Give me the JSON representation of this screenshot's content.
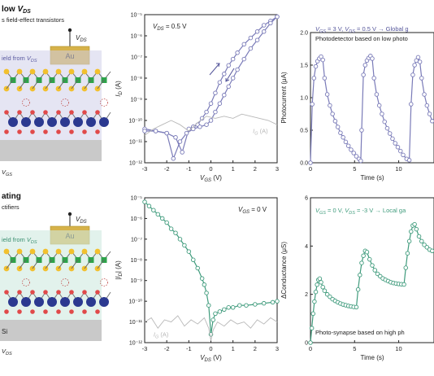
{
  "schematic_top": {
    "title_prefix": "low ",
    "title_var": "V",
    "title_sub": "DS",
    "subtitle": "s field-effect transistors",
    "electrode": "Au",
    "vds_var": "V",
    "vds_sub": "DS",
    "field_prefix": "ield from ",
    "field_var": "V",
    "field_sub": "DS",
    "gs_var": "V",
    "gs_sub": "GS"
  },
  "schematic_bottom": {
    "title": "ating",
    "subtitle": "ctifiers",
    "electrode": "Au",
    "vds_var": "V",
    "vds_sub": "DS",
    "field_prefix": "ield from ",
    "field_var": "V",
    "field_sub": "DS",
    "substrate": "Si",
    "ds_var": "V",
    "ds_sub": "DS"
  },
  "colors": {
    "purple": "#7a7bb8",
    "purple_dark": "#54559a",
    "green": "#3f9b7c",
    "gray": "#b8b8b8",
    "au": "#d6b24a",
    "atom_blue": "#2b3990",
    "atom_green": "#2ea34a",
    "atom_yellow": "#f2c02e",
    "atom_red": "#e04a4a"
  },
  "chart_data": [
    {
      "type": "line",
      "panel": "top-middle",
      "annotation": {
        "var": "V",
        "sub": "DS",
        "text": " = 0.5 V"
      },
      "xlabel": {
        "var": "V",
        "sub": "GS",
        "unit": " (V)"
      },
      "ylabel": {
        "var": "I",
        "sub": "D",
        "unit": " (A)"
      },
      "xlim": [
        -3,
        3
      ],
      "ylim_log10": [
        -12,
        -5
      ],
      "x_ticks": [
        "-3",
        "-2",
        "-1",
        "0",
        "1",
        "2",
        "3"
      ],
      "y_ticks": [
        "10⁻¹²",
        "10⁻¹¹",
        "10⁻¹⁰",
        "10⁻⁹",
        "10⁻⁸",
        "10⁻⁷",
        "10⁻⁶",
        "10⁻⁵"
      ],
      "series": [
        {
          "name": "",
          "color": "#7a7bb8",
          "marker": "circle",
          "x": [
            -3.0,
            -2.5,
            -2.0,
            -1.6,
            -1.3,
            -1.0,
            -0.8,
            -0.6,
            -0.4,
            -0.2,
            0.0,
            0.2,
            0.4,
            0.6,
            0.8,
            1.0,
            1.2,
            1.5,
            1.8,
            2.1,
            2.4,
            2.7,
            3.0
          ],
          "log10_y": [
            -10.4,
            -10.5,
            -10.6,
            -10.8,
            -11.5,
            -10.4,
            -10.3,
            -10.2,
            -9.9,
            -9.6,
            -9.2,
            -8.7,
            -8.2,
            -7.8,
            -7.4,
            -7.1,
            -6.8,
            -6.4,
            -6.1,
            -5.8,
            -5.5,
            -5.3,
            -5.1
          ]
        },
        {
          "name": "",
          "color": "#7a7bb8",
          "marker": "circle",
          "x": [
            3.0,
            2.7,
            2.4,
            2.1,
            1.8,
            1.5,
            1.2,
            1.0,
            0.8,
            0.6,
            0.4,
            0.2,
            0.0,
            -0.2,
            -0.5,
            -0.8,
            -1.1,
            -1.4,
            -1.7,
            -2.0,
            -2.5,
            -3.0
          ],
          "log10_y": [
            -5.1,
            -5.4,
            -5.8,
            -6.2,
            -6.6,
            -7.1,
            -7.6,
            -8.0,
            -8.4,
            -8.8,
            -9.2,
            -9.6,
            -10.0,
            -10.2,
            -10.3,
            -10.4,
            -10.6,
            -11.0,
            -11.8,
            -10.6,
            -10.5,
            -10.5
          ]
        },
        {
          "name": "",
          "color": "#b8b8b8",
          "marker": "none",
          "label": {
            "var": "I",
            "sub": "G",
            "unit": " (A)"
          },
          "x": [
            -3.0,
            -2.6,
            -2.2,
            -1.8,
            -1.4,
            -1.0,
            -0.6,
            -0.2,
            0.2,
            0.6,
            1.0,
            1.4,
            1.8,
            2.2,
            2.6,
            3.0
          ],
          "log10_y": [
            -10.7,
            -10.4,
            -10.2,
            -10.0,
            -10.2,
            -10.5,
            -10.1,
            -9.8,
            -9.9,
            -9.8,
            -9.9,
            -9.7,
            -9.8,
            -9.9,
            -10.0,
            -10.2
          ]
        }
      ]
    },
    {
      "type": "scatter",
      "panel": "top-right",
      "annotation_prefix": "V",
      "annotation": {
        "v1": "GS",
        "t1": " = 3 V, ",
        "v2": "DS",
        "t2": " = 0.5 V → Global g"
      },
      "subtitle": "Photodetector based on low photo",
      "xlabel": "Time (s)",
      "ylabel": "Photocurrent (μA)",
      "xlim": [
        0,
        14
      ],
      "ylim": [
        0,
        2.0
      ],
      "x_ticks": [
        "0",
        "5",
        "10"
      ],
      "y_ticks": [
        "0.0",
        "0.5",
        "1.0",
        "1.5",
        "2.0"
      ],
      "series": [
        {
          "name": "",
          "color": "#7a7bb8",
          "marker": "circle",
          "x": [
            0.0,
            0.2,
            0.4,
            0.6,
            0.8,
            1.0,
            1.2,
            1.4,
            1.6,
            1.9,
            2.2,
            2.5,
            2.8,
            3.1,
            3.4,
            3.7,
            4.0,
            4.3,
            4.6,
            4.9,
            5.2,
            5.5,
            5.7,
            5.8,
            6.0,
            6.2,
            6.4,
            6.6,
            6.8,
            7.0,
            7.2,
            7.5,
            7.8,
            8.1,
            8.4,
            8.7,
            9.0,
            9.3,
            9.6,
            9.9,
            10.2,
            10.5,
            10.9,
            11.2,
            11.4,
            11.6,
            11.8,
            12.0,
            12.2,
            12.4,
            12.6,
            12.9,
            13.2,
            13.5,
            13.8
          ],
          "y": [
            0.0,
            0.9,
            1.3,
            1.48,
            1.56,
            1.6,
            1.63,
            1.58,
            1.3,
            1.05,
            0.88,
            0.75,
            0.64,
            0.55,
            0.46,
            0.39,
            0.32,
            0.26,
            0.2,
            0.15,
            0.1,
            0.06,
            0.03,
            0.5,
            1.35,
            1.5,
            1.57,
            1.61,
            1.64,
            1.6,
            1.3,
            1.05,
            0.88,
            0.75,
            0.63,
            0.53,
            0.45,
            0.37,
            0.3,
            0.24,
            0.18,
            0.12,
            0.06,
            0.04,
            0.9,
            1.35,
            1.5,
            1.57,
            1.62,
            1.55,
            1.3,
            1.05,
            0.88,
            0.75,
            0.64
          ]
        }
      ]
    },
    {
      "type": "line",
      "panel": "bottom-middle",
      "annotation": {
        "var": "V",
        "sub": "GS",
        "text": " = 0 V"
      },
      "xlabel": {
        "var": "V",
        "sub": "DS",
        "unit": " (V)"
      },
      "ylabel": {
        "var": "|I",
        "sub": "D",
        "unit": "| (A)"
      },
      "xlim": [
        -3,
        3
      ],
      "ylim_log10": [
        -12,
        -5
      ],
      "x_ticks": [
        "-3",
        "-2",
        "-1",
        "0",
        "1",
        "2",
        "3"
      ],
      "y_ticks": [
        "10⁻¹²",
        "10⁻¹¹",
        "10⁻¹⁰",
        "10⁻⁹",
        "10⁻⁸",
        "10⁻⁷",
        "10⁻⁶",
        "10⁻⁵"
      ],
      "series": [
        {
          "name": "",
          "color": "#3f9b7c",
          "marker": "circle",
          "x": [
            -3.0,
            -2.8,
            -2.6,
            -2.4,
            -2.2,
            -2.0,
            -1.8,
            -1.6,
            -1.4,
            -1.2,
            -1.0,
            -0.8,
            -0.6,
            -0.4,
            -0.3,
            -0.2,
            -0.1,
            0.0,
            0.1,
            0.2,
            0.4,
            0.6,
            0.8,
            1.0,
            1.3,
            1.6,
            2.0,
            2.4,
            2.8,
            3.0
          ],
          "log10_y": [
            -5.2,
            -5.4,
            -5.6,
            -5.8,
            -6.0,
            -6.2,
            -6.5,
            -6.7,
            -7.0,
            -7.3,
            -7.6,
            -8.0,
            -8.4,
            -8.9,
            -9.2,
            -9.6,
            -10.2,
            -11.6,
            -10.9,
            -10.6,
            -10.5,
            -10.4,
            -10.3,
            -10.3,
            -10.2,
            -10.2,
            -10.15,
            -10.1,
            -10.05,
            -10.0
          ]
        },
        {
          "name": "",
          "color": "#b8b8b8",
          "marker": "none",
          "label": {
            "var": "I",
            "sub": "G",
            "unit": " (A)"
          },
          "x": [
            -3.0,
            -2.7,
            -2.4,
            -2.1,
            -1.8,
            -1.5,
            -1.2,
            -0.9,
            -0.6,
            -0.3,
            -0.1,
            0.0,
            0.1,
            0.3,
            0.6,
            0.9,
            1.2,
            1.5,
            1.8,
            2.1,
            2.4,
            2.7,
            3.0
          ],
          "log10_y": [
            -11.0,
            -10.8,
            -11.3,
            -10.9,
            -11.0,
            -10.7,
            -11.2,
            -10.9,
            -11.1,
            -10.8,
            -11.3,
            -11.9,
            -11.4,
            -11.0,
            -11.2,
            -10.9,
            -11.1,
            -11.0,
            -11.3,
            -10.9,
            -11.1,
            -10.8,
            -11.0
          ]
        }
      ]
    },
    {
      "type": "scatter",
      "panel": "bottom-right",
      "annotation": {
        "v1": "GS",
        "t1": " = 0 V, ",
        "v2": "DS",
        "t2": " = -3 V → Local ga"
      },
      "subtitle": "Photo-synapse based on high ph",
      "xlabel": "Time (s)",
      "ylabel": "ΔConductance (μS)",
      "xlim": [
        0,
        14
      ],
      "ylim": [
        0,
        6
      ],
      "x_ticks": [
        "0",
        "5",
        "10"
      ],
      "y_ticks": [
        "0",
        "2",
        "4",
        "6"
      ],
      "series": [
        {
          "name": "",
          "color": "#3f9b7c",
          "marker": "circle",
          "x": [
            0.0,
            0.15,
            0.3,
            0.45,
            0.6,
            0.75,
            0.9,
            1.05,
            1.2,
            1.4,
            1.6,
            1.9,
            2.2,
            2.5,
            2.8,
            3.1,
            3.4,
            3.7,
            4.0,
            4.3,
            4.6,
            4.9,
            5.2,
            5.4,
            5.6,
            5.8,
            6.0,
            6.2,
            6.4,
            6.7,
            7.0,
            7.3,
            7.6,
            7.9,
            8.2,
            8.5,
            8.8,
            9.1,
            9.4,
            9.7,
            10.0,
            10.3,
            10.6,
            10.8,
            11.0,
            11.2,
            11.4,
            11.6,
            11.8,
            12.0,
            12.3,
            12.6,
            12.9,
            13.2,
            13.5,
            13.8
          ],
          "y": [
            0.0,
            0.6,
            1.2,
            1.7,
            2.1,
            2.4,
            2.6,
            2.65,
            2.5,
            2.3,
            2.15,
            2.0,
            1.9,
            1.8,
            1.73,
            1.67,
            1.62,
            1.58,
            1.55,
            1.52,
            1.5,
            1.48,
            1.47,
            2.2,
            2.8,
            3.3,
            3.6,
            3.8,
            3.75,
            3.45,
            3.2,
            3.0,
            2.85,
            2.75,
            2.66,
            2.6,
            2.55,
            2.5,
            2.47,
            2.45,
            2.43,
            2.42,
            2.41,
            3.1,
            3.7,
            4.2,
            4.6,
            4.85,
            4.9,
            4.7,
            4.4,
            4.2,
            4.05,
            3.95,
            3.85,
            3.8
          ]
        }
      ]
    }
  ]
}
